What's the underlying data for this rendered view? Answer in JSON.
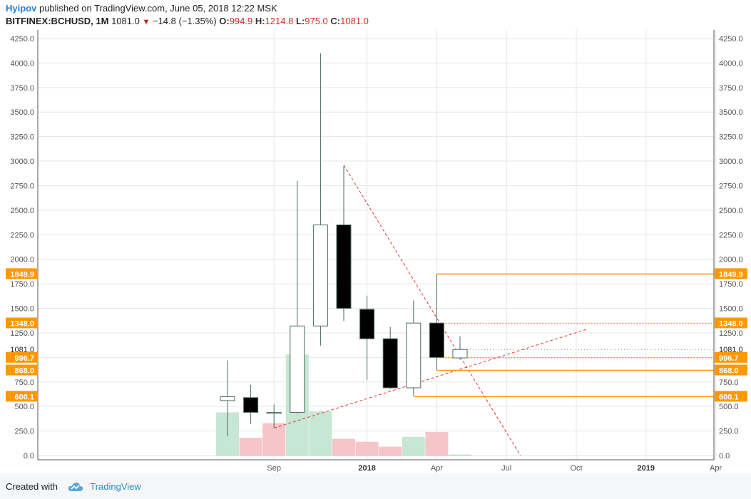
{
  "header": {
    "author": "Hyipov",
    "published_text": "published on TradingView.com, June 05, 2018 12:22 MSK",
    "symbol": "BITFINEX:BCHUSD, 1M",
    "last": "1081.0",
    "change": "−14.8 (−1.35%)",
    "o_label": "O:",
    "o": "994.9",
    "h_label": "H:",
    "h": "1214.8",
    "l_label": "L:",
    "l": "975.0",
    "c_label": "C:",
    "c": "1081.0"
  },
  "footer": {
    "created_with": "Created with",
    "brand": "TradingView"
  },
  "colors": {
    "up_fill": "#ffffff",
    "down_fill": "#000000",
    "candle_border": "#4a6b5e",
    "volume_up": "#c7e6d3",
    "volume_down": "#f6c5c8",
    "level": "#ff9800",
    "trendline": "#e53935",
    "grid": "#e6e6e6"
  },
  "chart_data": {
    "type": "candlestick",
    "ylim": [
      0,
      4250
    ],
    "y_ticks": [
      "4250.0",
      "4000.0",
      "3750.0",
      "3500.0",
      "3250.0",
      "3000.0",
      "2750.0",
      "2500.0",
      "2250.0",
      "2000.0",
      "1750.0",
      "1500.0",
      "1250.0",
      "1000.0",
      "750.0",
      "500.0",
      "250.0",
      "0.0"
    ],
    "x_ticks": [
      {
        "label": "Sep",
        "month": 2
      },
      {
        "label": "2018",
        "month": 6
      },
      {
        "label": "Apr",
        "month": 9
      },
      {
        "label": "Jul",
        "month": 12
      },
      {
        "label": "Oct",
        "month": 15
      },
      {
        "label": "2019",
        "month": 18
      },
      {
        "label": "Apr",
        "month": 21
      }
    ],
    "candles": [
      {
        "date": "2017-08",
        "open": 560,
        "high": 970,
        "low": 195,
        "close": 600
      },
      {
        "date": "2017-09",
        "open": 590,
        "high": 720,
        "low": 320,
        "close": 440
      },
      {
        "date": "2017-10",
        "open": 440,
        "high": 520,
        "low": 280,
        "close": 440
      },
      {
        "date": "2017-11",
        "open": 440,
        "high": 2800,
        "low": 430,
        "close": 1320
      },
      {
        "date": "2017-12",
        "open": 1320,
        "high": 4100,
        "low": 1120,
        "close": 2350
      },
      {
        "date": "2018-01",
        "open": 2350,
        "high": 2950,
        "low": 1370,
        "close": 1500
      },
      {
        "date": "2018-02",
        "open": 1490,
        "high": 1630,
        "low": 770,
        "close": 1190
      },
      {
        "date": "2018-03",
        "open": 1190,
        "high": 1310,
        "low": 680,
        "close": 690
      },
      {
        "date": "2018-04",
        "open": 690,
        "high": 1580,
        "low": 610,
        "close": 1350
      },
      {
        "date": "2018-05",
        "open": 1350,
        "high": 1850,
        "low": 870,
        "close": 1000
      },
      {
        "date": "2018-06",
        "open": 994.9,
        "high": 1214.8,
        "low": 975.0,
        "close": 1081.0
      }
    ],
    "volume_bars": [
      {
        "date": "2017-08",
        "value": 440,
        "direction": "up"
      },
      {
        "date": "2017-09",
        "value": 180,
        "direction": "down"
      },
      {
        "date": "2017-10",
        "value": 330,
        "direction": "down"
      },
      {
        "date": "2017-11",
        "value": 1030,
        "direction": "up"
      },
      {
        "date": "2017-12",
        "value": 450,
        "direction": "up"
      },
      {
        "date": "2018-01",
        "value": 170,
        "direction": "down"
      },
      {
        "date": "2018-02",
        "value": 140,
        "direction": "down"
      },
      {
        "date": "2018-03",
        "value": 90,
        "direction": "down"
      },
      {
        "date": "2018-04",
        "value": 190,
        "direction": "up"
      },
      {
        "date": "2018-05",
        "value": 240,
        "direction": "down"
      },
      {
        "date": "2018-06",
        "value": 10,
        "direction": "up"
      }
    ],
    "levels": [
      {
        "price": 1849.9,
        "label": "1849.9",
        "from": "2018-05",
        "style": "solid"
      },
      {
        "price": 1348.0,
        "label": "1348.0",
        "from": "2018-05",
        "style": "dotted"
      },
      {
        "price": 996.7,
        "label": "996.7",
        "from": "2018-05",
        "style": "dotted"
      },
      {
        "price": 868.0,
        "label": "868.0",
        "from": "2018-05",
        "style": "solid"
      },
      {
        "price": 600.1,
        "label": "600.1",
        "from": "2018-04",
        "style": "solid"
      }
    ],
    "last_price": {
      "price": 1081.0,
      "label": "1081.0"
    },
    "trendlines": [
      {
        "from": {
          "date": "2018-01",
          "price": 2960
        },
        "to": {
          "date": "2018-08.6",
          "price": 0
        }
      },
      {
        "from": {
          "date": "2017-10",
          "price": 280
        },
        "to": {
          "date": "2018-11.5",
          "price": 1290
        }
      }
    ]
  }
}
